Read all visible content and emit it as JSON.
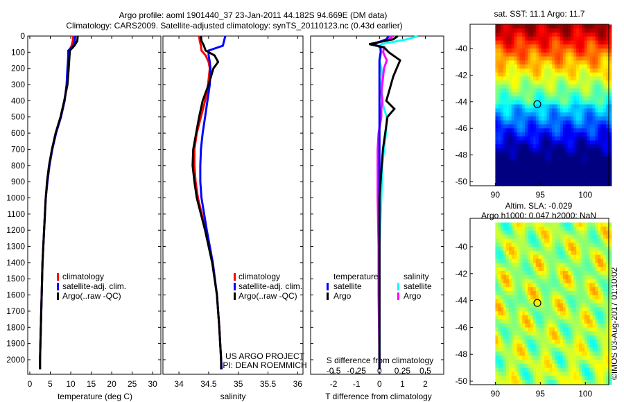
{
  "header": {
    "title_line1": "Argo profile: aoml 1901440_37 23-Jan-2011 44.182S 94.669E (DM data)",
    "title_line2": "Climatology: CARS2009. Satellite-adjusted climatology: synTS_20110123.nc (0.43d earlier)"
  },
  "credits": {
    "project": "US ARGO PROJECT",
    "pi": "PI: DEAN ROEMMICH",
    "copyright": "©IMOS 03-Aug-2017 01:10:02"
  },
  "colors": {
    "climatology": "#ff0000",
    "satellite": "#0000ff",
    "argo": "#000000",
    "sal_satellite": "#00ffff",
    "sal_argo": "#ff00ff"
  },
  "chart_data": [
    {
      "type": "line",
      "id": "temperature",
      "xlabel": "temperature (deg C)",
      "xlim": [
        -0.5,
        32
      ],
      "xticks": [
        0,
        5,
        10,
        15,
        20,
        25,
        30
      ],
      "ylim": [
        0,
        2090
      ],
      "yticks": [
        0,
        100,
        200,
        300,
        400,
        500,
        600,
        700,
        800,
        900,
        1000,
        1100,
        1200,
        1300,
        1400,
        1500,
        1600,
        1700,
        1800,
        1900,
        2000
      ],
      "legend": [
        "climatology",
        "satellite-adj. clim.",
        "Argo(..raw -QC)"
      ],
      "depth": [
        0,
        30,
        60,
        90,
        120,
        200,
        300,
        400,
        500,
        600,
        700,
        800,
        900,
        1000,
        1200,
        1400,
        1600,
        1800,
        2000,
        2060
      ],
      "series": [
        {
          "name": "climatology",
          "values": [
            10.6,
            10.5,
            10.2,
            9.6,
            9.5,
            9.3,
            9.0,
            8.5,
            7.6,
            6.4,
            5.5,
            4.8,
            4.3,
            3.9,
            3.5,
            3.1,
            2.9,
            2.7,
            2.5,
            2.5
          ]
        },
        {
          "name": "satellite-adj. clim.",
          "values": [
            11.1,
            11.0,
            10.6,
            9.4,
            9.4,
            9.2,
            9.0,
            8.5,
            7.6,
            6.4,
            5.5,
            4.8,
            4.3,
            3.9,
            3.5,
            3.1,
            2.9,
            2.7,
            2.5,
            2.5
          ]
        },
        {
          "name": "Argo(..raw -QC)",
          "values": [
            11.7,
            11.6,
            10.9,
            9.8,
            9.7,
            9.5,
            9.2,
            8.4,
            7.5,
            6.3,
            5.4,
            4.7,
            4.2,
            3.9,
            3.5,
            3.1,
            2.9,
            2.7,
            2.5,
            2.5
          ]
        }
      ]
    },
    {
      "type": "line",
      "id": "salinity",
      "xlabel": "salinity",
      "xlim": [
        33.73,
        36.09
      ],
      "xticks": [
        34,
        34.5,
        35,
        35.5,
        36
      ],
      "ylim": [
        0,
        2090
      ],
      "legend": [
        "climatology",
        "satellite-adj. clim.",
        "Argo(..raw -QC)"
      ],
      "depth": [
        0,
        30,
        60,
        90,
        120,
        160,
        200,
        300,
        400,
        500,
        600,
        700,
        800,
        900,
        1000,
        1200,
        1400,
        1600,
        1800,
        2000,
        2060
      ],
      "series": [
        {
          "name": "climatology",
          "values": [
            34.34,
            34.35,
            34.37,
            34.38,
            34.45,
            34.5,
            34.52,
            34.49,
            34.44,
            34.37,
            34.3,
            34.26,
            34.26,
            34.28,
            34.32,
            34.45,
            34.57,
            34.64,
            34.68,
            34.71,
            34.72
          ]
        },
        {
          "name": "satellite-adj. clim.",
          "values": [
            34.78,
            34.76,
            34.74,
            34.5,
            34.5,
            34.52,
            34.53,
            34.52,
            34.48,
            34.44,
            34.4,
            34.37,
            34.36,
            34.36,
            34.38,
            34.47,
            34.57,
            34.64,
            34.68,
            34.71,
            34.72
          ]
        },
        {
          "name": "Argo(..raw -QC)",
          "values": [
            34.37,
            34.38,
            34.42,
            34.45,
            34.6,
            34.66,
            34.58,
            34.5,
            34.4,
            34.34,
            34.29,
            34.24,
            34.23,
            34.26,
            34.3,
            34.44,
            34.56,
            34.64,
            34.68,
            34.71,
            34.71
          ]
        }
      ]
    },
    {
      "type": "line",
      "id": "difference",
      "xlabel": "T difference from climatology",
      "xlabel_top": "S difference from climatology",
      "xlim": [
        -3.0,
        2.8
      ],
      "xticks": [
        -2,
        -1,
        0,
        1,
        2
      ],
      "s_ticks": [
        -0.5,
        -0.25,
        0,
        0.25,
        0.5
      ],
      "s_tick_labels": [
        "-0.5",
        "-0.25",
        "0",
        "0.25",
        "0.5"
      ],
      "legend_headers": [
        "temperature",
        "salinity"
      ],
      "legend": [
        [
          "satellite",
          "Argo"
        ],
        [
          "satellite",
          "Argo"
        ]
      ],
      "depth": [
        0,
        20,
        50,
        70,
        100,
        150,
        200,
        250,
        300,
        350,
        400,
        450,
        500,
        600,
        700,
        800,
        1000,
        1300,
        1600,
        2000,
        2060
      ],
      "series": [
        {
          "name": "T satellite",
          "unit": "T",
          "values": [
            0.4,
            0.3,
            -0.25,
            0.05,
            0.05,
            0.0,
            0.0,
            0.0,
            0.0,
            0.0,
            0.0,
            0.0,
            0.0,
            0.0,
            0.0,
            0.0,
            0.0,
            0.0,
            0.0,
            0.0,
            0.0
          ]
        },
        {
          "name": "T Argo",
          "unit": "T",
          "values": [
            0.8,
            0.6,
            -0.45,
            0.2,
            0.4,
            0.9,
            0.75,
            0.6,
            0.5,
            0.4,
            0.3,
            0.65,
            0.35,
            0.25,
            0.15,
            0.1,
            0.0,
            0.0,
            0.0,
            0.0,
            0.0
          ]
        },
        {
          "name": "S satellite",
          "unit": "S",
          "values": [
            0.42,
            0.3,
            0.02,
            0.0,
            0.02,
            0.0,
            0.02,
            0.03,
            0.02,
            0.03,
            0.03,
            0.05,
            0.08,
            0.07,
            0.05,
            0.03,
            0.02,
            0.0,
            0.0,
            0.0,
            0.0
          ]
        },
        {
          "name": "S Argo",
          "unit": "S",
          "values": [
            0.15,
            0.1,
            -0.1,
            0.05,
            0.04,
            0.08,
            0.05,
            0.04,
            0.03,
            0.02,
            0.03,
            0.02,
            0.02,
            -0.01,
            -0.02,
            -0.02,
            -0.02,
            -0.01,
            -0.01,
            0.0,
            0.0
          ]
        }
      ]
    },
    {
      "type": "heatmap",
      "id": "sst_map",
      "title": "sat. SST: 11.1 Argo: 11.7",
      "xlim": [
        87.2,
        102.6
      ],
      "ylim": [
        -50.3,
        -38.2
      ],
      "xticks": [
        90,
        95,
        100
      ],
      "yticks": [
        -40,
        -42,
        -44,
        -46,
        -48,
        -50
      ],
      "marker": {
        "lon": 94.669,
        "lat": -44.182
      }
    },
    {
      "type": "heatmap",
      "id": "sla_map",
      "title_line1": "Altim. SLA: -0.029",
      "title_line2": "Argo h1000: 0.047 h2000: NaN",
      "xlim": [
        87.2,
        102.6
      ],
      "ylim": [
        -50.3,
        -38.2
      ],
      "xticks": [
        90,
        95,
        100
      ],
      "yticks": [
        -40,
        -42,
        -44,
        -46,
        -48,
        -50
      ],
      "marker": {
        "lon": 94.669,
        "lat": -44.182
      }
    }
  ]
}
